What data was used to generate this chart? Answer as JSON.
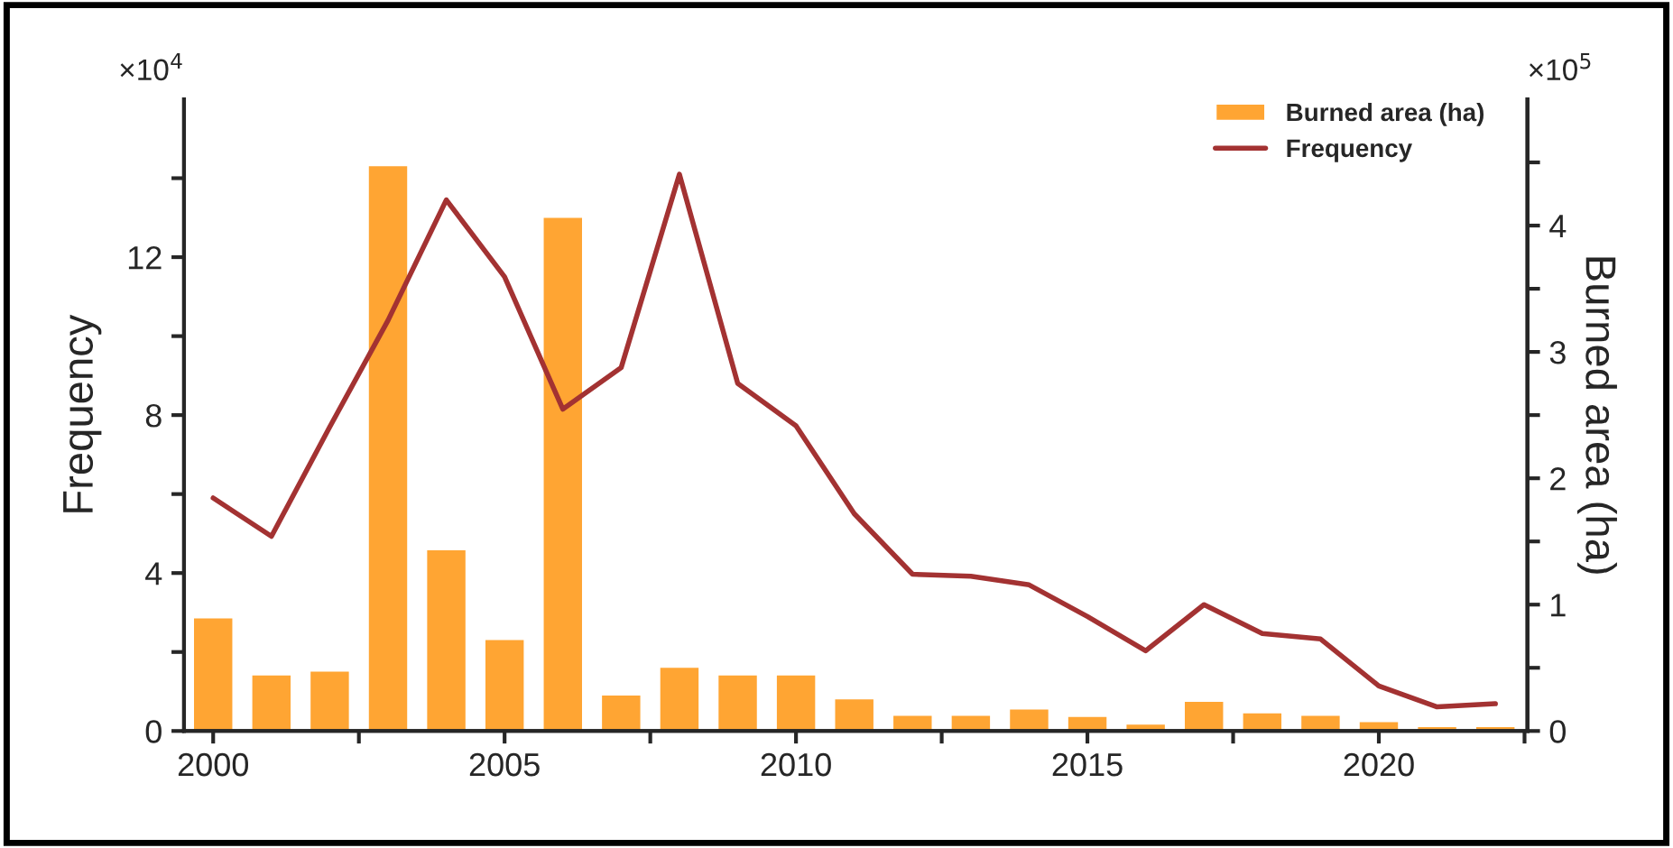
{
  "chart_data": {
    "type": "bar",
    "x": [
      2000,
      2001,
      2002,
      2003,
      2004,
      2005,
      2006,
      2007,
      2008,
      2009,
      2010,
      2011,
      2012,
      2013,
      2014,
      2015,
      2016,
      2017,
      2018,
      2019,
      2020,
      2021,
      2022
    ],
    "series": [
      {
        "name": "Burned area (ha)",
        "axis": "y2",
        "color": "#ffa533",
        "values": [
          0.9,
          0.45,
          0.48,
          4.48,
          1.44,
          0.73,
          4.07,
          0.29,
          0.51,
          0.45,
          0.45,
          0.26,
          0.13,
          0.13,
          0.18,
          0.12,
          0.06,
          0.24,
          0.15,
          0.13,
          0.08,
          0.04,
          0.04
        ]
      },
      {
        "name": "Frequency",
        "type": "line",
        "axis": "y",
        "color": "#a33232",
        "values": [
          5.9,
          4.93,
          7.7,
          10.4,
          13.45,
          11.5,
          8.15,
          9.2,
          14.1,
          8.8,
          7.73,
          5.5,
          3.97,
          3.92,
          3.7,
          2.9,
          2.03,
          3.2,
          2.47,
          2.33,
          1.14,
          0.61,
          0.69
        ]
      }
    ],
    "ylabel": "Frequency",
    "y2label": "Burned area (ha)",
    "annotations": [
      "×10$^{4}$",
      "×10$^{5}$"
    ],
    "xlim": [
      1999.5,
      2022.55
    ],
    "xticks": [
      2000,
      {
        "value": 2002.5,
        "label": null
      },
      2005,
      {
        "value": 2007.5,
        "label": null
      },
      2010,
      {
        "value": 2012.5,
        "label": null
      },
      2015,
      {
        "value": 2017.5,
        "label": null
      },
      2020,
      {
        "value": 2022.5,
        "label": null
      }
    ],
    "ylim": [
      0,
      16
    ],
    "yticks": [
      0,
      {
        "value": 2,
        "label": null
      },
      4,
      {
        "value": 6,
        "label": null
      },
      8,
      {
        "value": 10,
        "label": null
      },
      12,
      {
        "value": 14,
        "label": null
      }
    ],
    "y2lim": [
      0,
      5
    ],
    "y2ticks": [
      0,
      {
        "value": 0.5,
        "label": null
      },
      1,
      {
        "value": 1.5,
        "label": null
      },
      2,
      {
        "value": 2.5,
        "label": null
      },
      3,
      {
        "value": 3.5,
        "label": null
      },
      4,
      {
        "value": 4.5,
        "label": null
      }
    ],
    "legend": "top right",
    "grid": false
  }
}
